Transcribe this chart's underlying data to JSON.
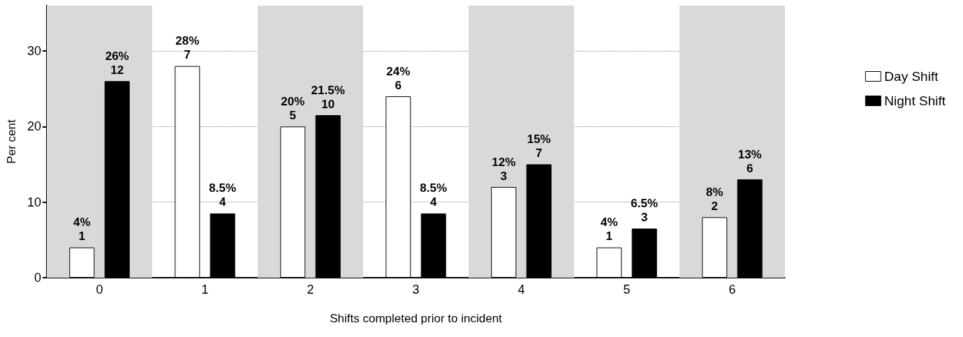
{
  "chart_data": {
    "type": "bar",
    "xlabel": "Shifts completed prior to incident",
    "ylabel": "Per cent",
    "categories": [
      "0",
      "1",
      "2",
      "3",
      "4",
      "5",
      "6"
    ],
    "series": [
      {
        "name": "Day Shift",
        "color": "#ffffff",
        "values": [
          4,
          28,
          20,
          24,
          12,
          4,
          8
        ],
        "value_labels": [
          "4%\n1",
          "28%\n7",
          "20%\n5",
          "24%\n6",
          "12%\n3",
          "4%\n1",
          "8%\n2"
        ]
      },
      {
        "name": "Night Shift",
        "color": "#000000",
        "values": [
          26,
          8.5,
          21.5,
          8.5,
          15,
          6.5,
          13
        ],
        "value_labels": [
          "26%\n12",
          "8.5%\n4",
          "21.5%\n10",
          "8.5%\n4",
          "15%\n7",
          "6.5%\n3",
          "13%\n6"
        ]
      }
    ],
    "ylim": [
      0,
      36
    ],
    "yticks": [
      0,
      10,
      20,
      30
    ],
    "grid": "y",
    "legend": "right",
    "bands": [
      {
        "axis": "x",
        "from": "0",
        "to": "0",
        "color": "#d9d9d9"
      },
      {
        "axis": "x",
        "from": "2",
        "to": "2",
        "color": "#d9d9d9"
      },
      {
        "axis": "x",
        "from": "4",
        "to": "4",
        "color": "#d9d9d9"
      },
      {
        "axis": "x",
        "from": "6",
        "to": "6",
        "color": "#d9d9d9"
      }
    ]
  }
}
